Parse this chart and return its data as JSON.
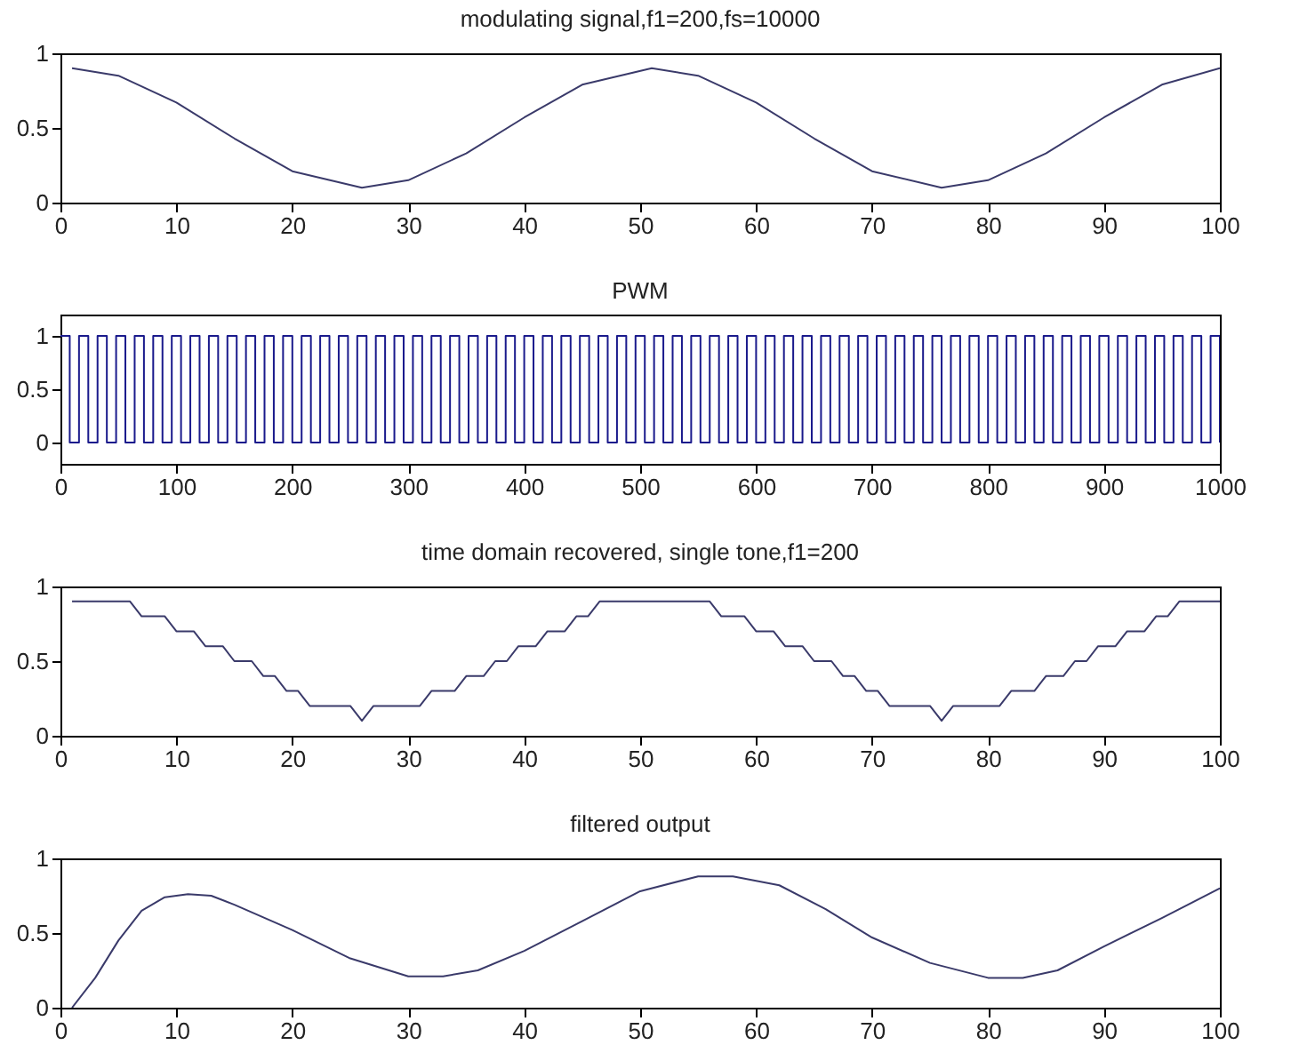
{
  "chart_data": [
    {
      "type": "line",
      "title": "modulating signal,f1=200,fs=10000",
      "xlim": [
        0,
        100
      ],
      "ylim": [
        0,
        1
      ],
      "xticks": [
        0,
        10,
        20,
        30,
        40,
        50,
        60,
        70,
        80,
        90,
        100
      ],
      "yticks": [
        0,
        0.5,
        1
      ],
      "series": [
        {
          "color": "#3a3a6a",
          "x": [
            1,
            5,
            10,
            15,
            20,
            26,
            30,
            35,
            40,
            45,
            51,
            55,
            60,
            65,
            70,
            76,
            80,
            85,
            90,
            95,
            100
          ],
          "values": [
            0.9,
            0.85,
            0.67,
            0.43,
            0.21,
            0.1,
            0.15,
            0.33,
            0.57,
            0.79,
            0.9,
            0.85,
            0.67,
            0.43,
            0.21,
            0.1,
            0.15,
            0.33,
            0.57,
            0.79,
            0.9
          ]
        }
      ]
    },
    {
      "type": "step",
      "title": "PWM",
      "xlim": [
        0,
        1000
      ],
      "ylim": [
        -0.2,
        1.2
      ],
      "xticks": [
        0,
        100,
        200,
        300,
        400,
        500,
        600,
        700,
        800,
        900,
        1000
      ],
      "yticks": [
        0,
        0.5,
        1
      ],
      "series": [
        {
          "color": "#1a1a8c",
          "x": [
            0,
            8,
            16,
            24,
            32,
            40,
            48,
            56,
            64,
            72,
            80,
            88,
            96,
            104,
            112,
            120,
            128,
            136,
            144,
            152,
            160,
            168,
            176,
            184,
            192,
            200,
            208,
            216,
            224,
            232,
            240,
            248,
            256,
            264,
            272,
            280,
            288,
            296,
            304,
            312,
            320,
            328,
            336,
            344,
            352,
            360,
            368,
            376,
            384,
            392,
            400,
            408,
            416,
            424,
            432,
            440,
            448,
            456,
            464,
            472,
            480,
            488,
            496,
            504,
            512,
            520,
            528,
            536,
            544,
            552,
            560,
            568,
            576,
            584,
            592,
            600,
            608,
            616,
            624,
            632,
            640,
            648,
            656,
            664,
            672,
            680,
            688,
            696,
            704,
            712,
            720,
            728,
            736,
            744,
            752,
            760,
            768,
            776,
            784,
            792,
            800,
            808,
            816,
            824,
            832,
            840,
            848,
            856,
            864,
            872,
            880,
            888,
            896,
            904,
            912,
            920,
            928,
            936,
            944,
            952,
            960,
            968,
            976,
            984,
            992,
            1000
          ],
          "values": [
            1,
            0,
            1,
            0,
            1,
            0,
            1,
            0,
            1,
            0,
            1,
            0,
            1,
            0,
            1,
            0,
            1,
            0,
            1,
            0,
            1,
            0,
            1,
            0,
            1,
            0,
            1,
            0,
            1,
            0,
            1,
            0,
            1,
            0,
            1,
            0,
            1,
            0,
            1,
            0,
            1,
            0,
            1,
            0,
            1,
            0,
            1,
            0,
            1,
            0,
            1,
            0,
            1,
            0,
            1,
            0,
            1,
            0,
            1,
            0,
            1,
            0,
            1,
            0,
            1,
            0,
            1,
            0,
            1,
            0,
            1,
            0,
            1,
            0,
            1,
            0,
            1,
            0,
            1,
            0,
            1,
            0,
            1,
            0,
            1,
            0,
            1,
            0,
            1,
            0,
            1,
            0,
            1,
            0,
            1,
            0,
            1,
            0,
            1,
            0,
            1,
            0,
            1,
            0,
            1,
            0,
            1,
            0,
            1,
            0,
            1,
            0,
            1,
            0,
            1,
            0,
            1,
            0,
            1,
            0,
            1,
            0,
            1,
            0,
            1,
            0
          ]
        }
      ]
    },
    {
      "type": "line",
      "title": "time domain recovered, single tone,f1=200",
      "xlim": [
        0,
        100
      ],
      "ylim": [
        0,
        1
      ],
      "xticks": [
        0,
        10,
        20,
        30,
        40,
        50,
        60,
        70,
        80,
        90,
        100
      ],
      "yticks": [
        0,
        0.5,
        1
      ],
      "series": [
        {
          "color": "#3a3a6a",
          "x": [
            1,
            6,
            7,
            9,
            10,
            11.5,
            12.5,
            14,
            15,
            16.5,
            17.5,
            18.5,
            19.5,
            20.5,
            21.5,
            25,
            26,
            27,
            31,
            32,
            34,
            35,
            36.5,
            37.5,
            38.5,
            39.5,
            41,
            42,
            43.5,
            44.5,
            45.5,
            46.5,
            56,
            57,
            59,
            60,
            61.5,
            62.5,
            64,
            65,
            66.5,
            67.5,
            68.5,
            69.5,
            70.5,
            71.5,
            75,
            76,
            77,
            81,
            82,
            84,
            85,
            86.5,
            87.5,
            88.5,
            89.5,
            91,
            92,
            93.5,
            94.5,
            95.5,
            96.5,
            100
          ],
          "values": [
            0.9,
            0.9,
            0.8,
            0.8,
            0.7,
            0.7,
            0.6,
            0.6,
            0.5,
            0.5,
            0.4,
            0.4,
            0.3,
            0.3,
            0.2,
            0.2,
            0.1,
            0.2,
            0.2,
            0.3,
            0.3,
            0.4,
            0.4,
            0.5,
            0.5,
            0.6,
            0.6,
            0.7,
            0.7,
            0.8,
            0.8,
            0.9,
            0.9,
            0.8,
            0.8,
            0.7,
            0.7,
            0.6,
            0.6,
            0.5,
            0.5,
            0.4,
            0.4,
            0.3,
            0.3,
            0.2,
            0.2,
            0.1,
            0.2,
            0.2,
            0.3,
            0.3,
            0.4,
            0.4,
            0.5,
            0.5,
            0.6,
            0.6,
            0.7,
            0.7,
            0.8,
            0.8,
            0.9,
            0.9
          ]
        }
      ]
    },
    {
      "type": "line",
      "title": "filtered output",
      "xlim": [
        0,
        100
      ],
      "ylim": [
        0,
        1
      ],
      "xticks": [
        0,
        10,
        20,
        30,
        40,
        50,
        60,
        70,
        80,
        90,
        100
      ],
      "yticks": [
        0,
        0.5,
        1
      ],
      "series": [
        {
          "color": "#3a3a6a",
          "x": [
            1,
            3,
            5,
            7,
            9,
            11,
            13,
            15,
            20,
            25,
            30,
            33,
            36,
            40,
            45,
            50,
            55,
            58,
            62,
            66,
            70,
            75,
            80,
            83,
            86,
            90,
            95,
            100
          ],
          "values": [
            0,
            0.2,
            0.45,
            0.65,
            0.74,
            0.76,
            0.75,
            0.69,
            0.52,
            0.33,
            0.21,
            0.21,
            0.25,
            0.38,
            0.58,
            0.78,
            0.88,
            0.88,
            0.82,
            0.66,
            0.47,
            0.3,
            0.2,
            0.2,
            0.25,
            0.41,
            0.6,
            0.8
          ]
        }
      ]
    }
  ]
}
